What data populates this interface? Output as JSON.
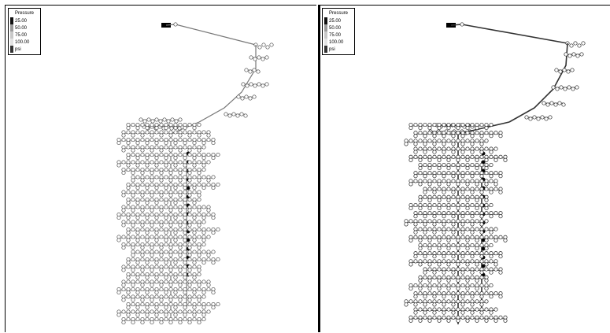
{
  "legend": {
    "title": "Pressure",
    "entries": [
      "25.00",
      "50.00",
      "75.00",
      "100.00"
    ],
    "unit": "psi",
    "colors": [
      "#111111",
      "#9a9a9a",
      "#c8c8c8",
      "#e2e2e2",
      "#333333"
    ]
  },
  "maps": {
    "left": {
      "node_fill": "#ffffff",
      "node_stroke": "#444444",
      "pipe_color": "#777777",
      "pipe_width_main": 1.2,
      "dark_node": "#000000"
    },
    "right": {
      "node_fill": "#ffffff",
      "node_stroke": "#222222",
      "pipe_color": "#333333",
      "pipe_width_main": 1.6,
      "dark_node": "#000000"
    }
  }
}
